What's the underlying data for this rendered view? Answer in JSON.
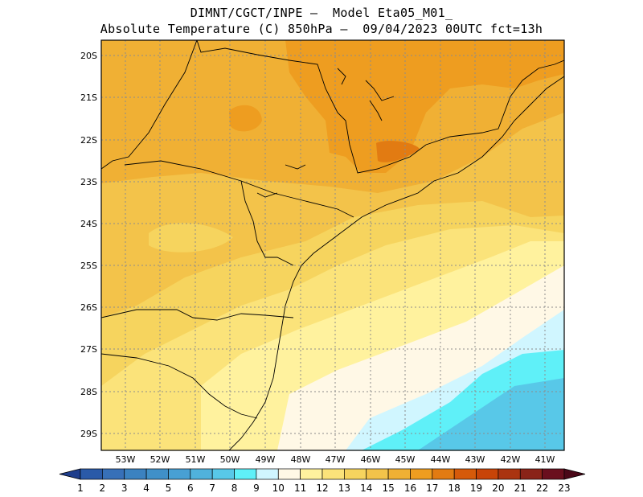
{
  "title": {
    "line1": "DIMNT/CGCT/INPE –  Model Eta05_M01_",
    "line2": "Absolute Temperature (C) 850hPa –  09/04/2023 00UTC fct=13h"
  },
  "map": {
    "lon_labels": [
      "53W",
      "52W",
      "51W",
      "50W",
      "49W",
      "48W",
      "47W",
      "46W",
      "45W",
      "44W",
      "43W",
      "42W",
      "41W"
    ],
    "lat_labels": [
      "20S",
      "21S",
      "22S",
      "23S",
      "24S",
      "25S",
      "26S",
      "27S",
      "28S",
      "29S"
    ]
  },
  "colorbar": {
    "labels": [
      "1",
      "2",
      "3",
      "4",
      "5",
      "6",
      "7",
      "8",
      "9",
      "10",
      "11",
      "12",
      "13",
      "14",
      "15",
      "16",
      "17",
      "18",
      "19",
      "20",
      "21",
      "22",
      "23"
    ],
    "colors": [
      "#1f3e8c",
      "#2a5aa8",
      "#3770b8",
      "#3b82c0",
      "#4090c8",
      "#48a0d4",
      "#50b2dc",
      "#58c8e8",
      "#5ff0f8",
      "#d0f6ff",
      "#fff8e6",
      "#fff29e",
      "#fbe37a",
      "#f6d45e",
      "#f3c34a",
      "#f0b034",
      "#ee9d20",
      "#e27b12",
      "#d65a0a",
      "#c84408",
      "#aa3410",
      "#8a2318",
      "#6a0f1e",
      "#4a0818"
    ]
  },
  "field": {
    "colors": {
      "c13": "#fbe37a",
      "c14": "#f6d45e",
      "c15": "#f3c34a",
      "c16": "#f0b034",
      "c17": "#ee9d20",
      "c18": "#e27b12",
      "c19": "#d65a0a",
      "c12": "#fff29e",
      "c11": "#fff8e6",
      "c10": "#d0f6ff",
      "c9": "#5ff0f8",
      "c8": "#58c8e8"
    }
  }
}
